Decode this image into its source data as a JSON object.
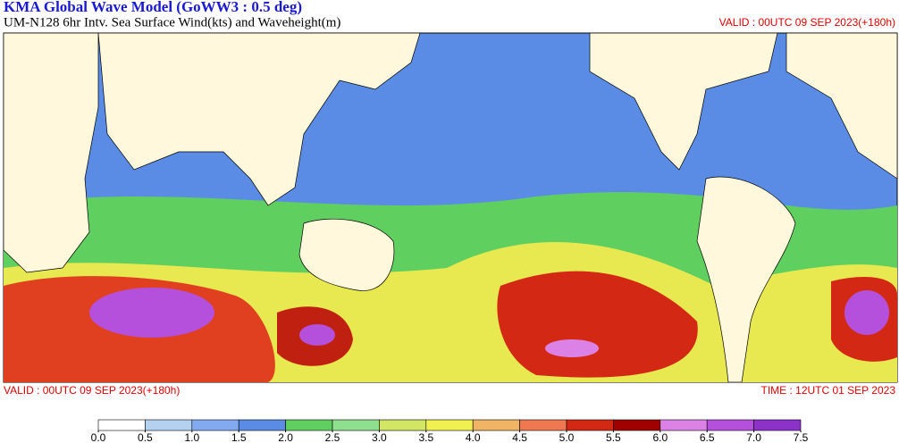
{
  "header": {
    "title": "KMA  Global Wave Model (GoWW3 : 0.5 deg)",
    "subtitle": "UM-N128  6hr Intv. Sea Surface Wind(kts) and Waveheight(m)",
    "valid_top": "VALID : 00UTC 09 SEP 2023(+180h)"
  },
  "footer": {
    "valid": "VALID : 00UTC 09 SEP 2023(+180h)",
    "time": "TIME : 12UTC 01 SEP 2023"
  },
  "colorbar": {
    "ticks": [
      {
        "value": 0,
        "label": "0.0"
      },
      {
        "value": 0.5,
        "label": "0.5"
      },
      {
        "value": 1,
        "label": "1.0"
      },
      {
        "value": 1.5,
        "label": "1.5"
      },
      {
        "value": 2,
        "label": "2.0"
      },
      {
        "value": 2.5,
        "label": "2.5"
      },
      {
        "value": 3,
        "label": "3.0"
      },
      {
        "value": 3.5,
        "label": "3.5"
      },
      {
        "value": 4,
        "label": "4.0"
      },
      {
        "value": 4.5,
        "label": "4.5"
      },
      {
        "value": 5,
        "label": "5.0"
      },
      {
        "value": 5.5,
        "label": "5.5"
      },
      {
        "value": 6,
        "label": "6.0"
      },
      {
        "value": 6.5,
        "label": "6.5"
      },
      {
        "value": 7,
        "label": "7.0"
      },
      {
        "value": 7.5,
        "label": "7.5"
      }
    ],
    "colors": [
      "#ffffff",
      "#b4d2f0",
      "#82aaf0",
      "#5a8ce6",
      "#5fcf5f",
      "#8ee08e",
      "#d2e664",
      "#f0f050",
      "#f0b464",
      "#f07850",
      "#d22814",
      "#a00000",
      "#dc82e6",
      "#b450dc",
      "#8c32c8"
    ]
  }
}
